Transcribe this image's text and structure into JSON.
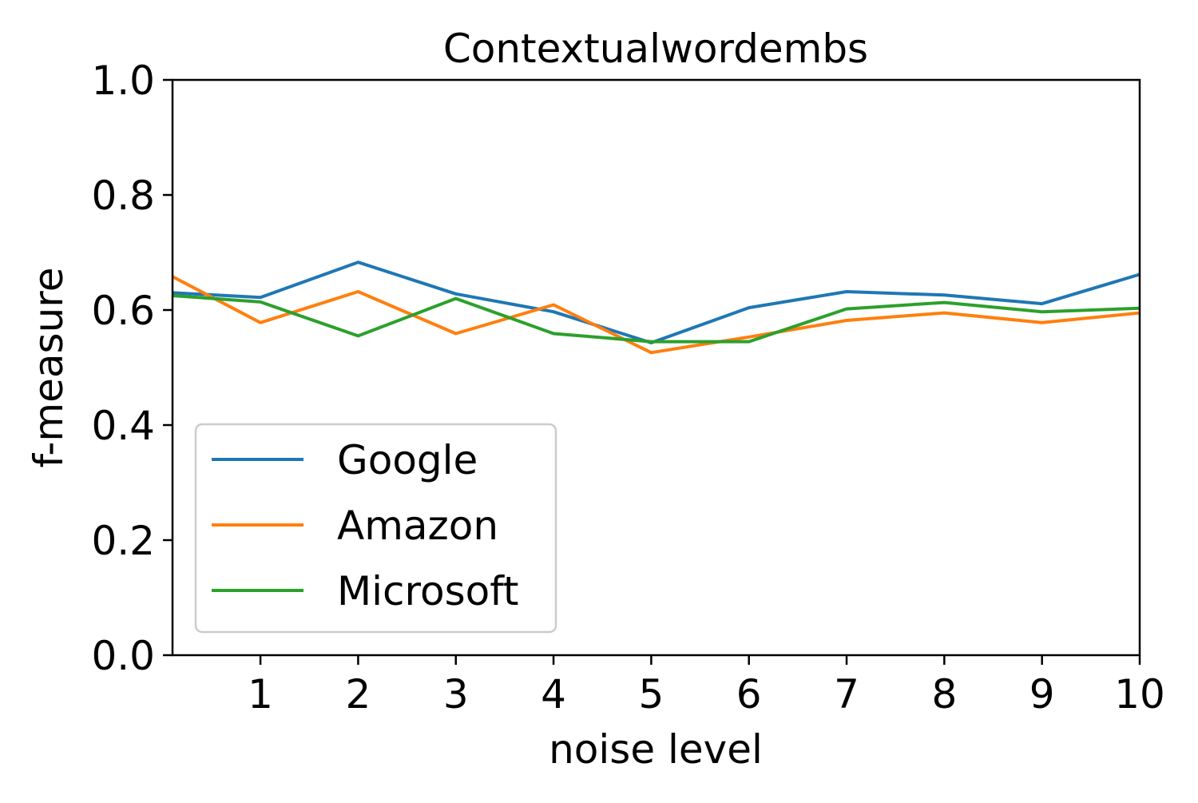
{
  "chart_data": {
    "type": "line",
    "title": "Contextualwordembs",
    "xlabel": "noise level",
    "ylabel": "f-measure",
    "xlim": [
      0.1,
      10
    ],
    "ylim": [
      0.0,
      1.0
    ],
    "xticks": [
      1,
      2,
      3,
      4,
      5,
      6,
      7,
      8,
      9,
      10
    ],
    "xtick_labels": [
      "1",
      "2",
      "3",
      "4",
      "5",
      "6",
      "7",
      "8",
      "9",
      "10"
    ],
    "yticks": [
      0.0,
      0.2,
      0.4,
      0.6,
      0.8,
      1.0
    ],
    "ytick_labels": [
      "0.0",
      "0.2",
      "0.4",
      "0.6",
      "0.8",
      "1.0"
    ],
    "x": [
      0.1,
      1,
      2,
      3,
      4,
      5,
      6,
      7,
      8,
      9,
      10
    ],
    "grid": false,
    "legend_position": "lower-left",
    "series": [
      {
        "name": "Google",
        "color": "#1f77b4",
        "values": [
          0.63,
          0.622,
          0.683,
          0.628,
          0.597,
          0.543,
          0.604,
          0.632,
          0.626,
          0.611,
          0.662
        ]
      },
      {
        "name": "Amazon",
        "color": "#ff7f0e",
        "values": [
          0.658,
          0.578,
          0.632,
          0.559,
          0.609,
          0.526,
          0.553,
          0.582,
          0.595,
          0.578,
          0.595
        ]
      },
      {
        "name": "Microsoft",
        "color": "#2ca02c",
        "values": [
          0.625,
          0.614,
          0.555,
          0.62,
          0.559,
          0.545,
          0.545,
          0.602,
          0.613,
          0.597,
          0.603
        ]
      }
    ]
  }
}
